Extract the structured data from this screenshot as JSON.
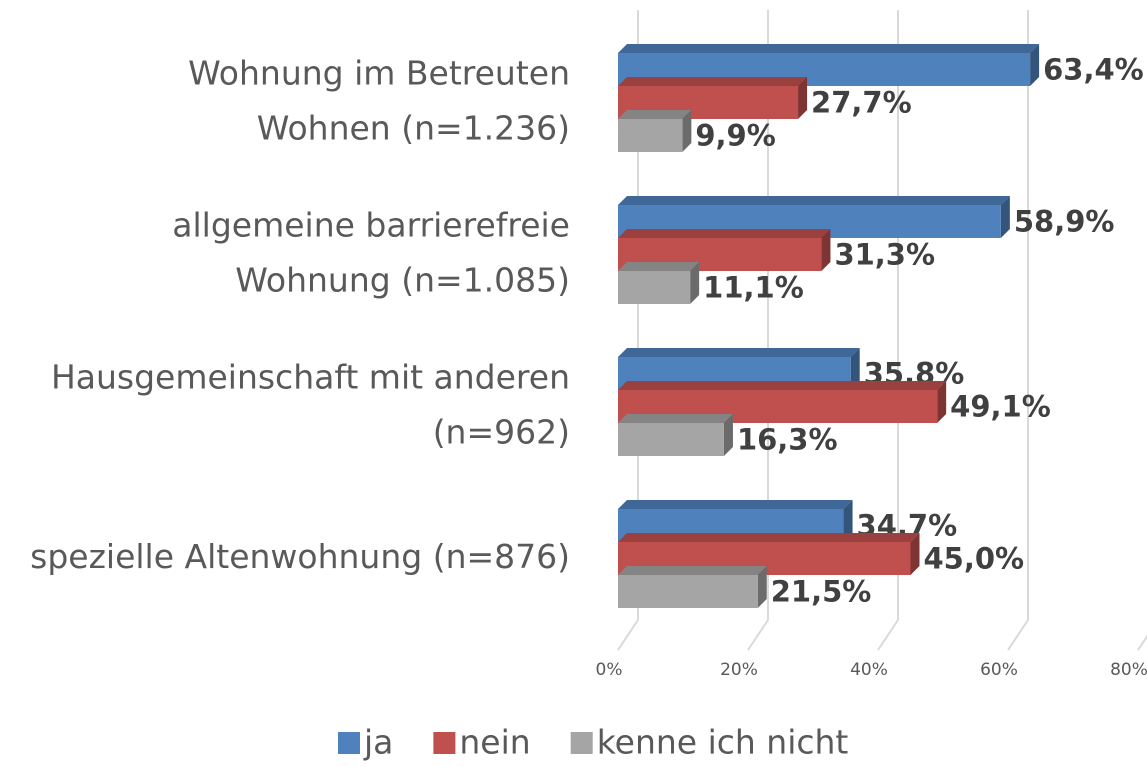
{
  "chart_data": {
    "type": "bar3d_horizontal",
    "categories": [
      [
        "Wohnung im Betreuten",
        "Wohnen (n=1.236)"
      ],
      [
        "allgemeine barrierefreie",
        "Wohnung  (n=1.085)"
      ],
      [
        "Hausgemeinschaft mit anderen",
        "(n=962)"
      ],
      [
        "spezielle Altenwohnung (n=876)"
      ]
    ],
    "series": [
      {
        "name": "ja",
        "color": "#4f81bd",
        "values": [
          63.4,
          58.9,
          35.8,
          34.7
        ],
        "value_labels": [
          "63,4%",
          "58,9%",
          "35,8%",
          "34,7%"
        ]
      },
      {
        "name": "nein",
        "color": "#c0504d",
        "values": [
          27.7,
          31.3,
          49.1,
          45.0
        ],
        "value_labels": [
          "27,7%",
          "31,3%",
          "49,1%",
          "45,0%"
        ]
      },
      {
        "name": "kenne ich nicht",
        "color": "#a5a5a5",
        "values": [
          9.9,
          11.1,
          16.3,
          21.5
        ],
        "value_labels": [
          "9,9%",
          "11,1%",
          "16,3%",
          "21,5%"
        ]
      }
    ],
    "xlim": [
      0,
      80
    ],
    "xticks": [
      {
        "value": 0,
        "label": "0%"
      },
      {
        "value": 20,
        "label": "20%"
      },
      {
        "value": 40,
        "label": "40%"
      },
      {
        "value": 60,
        "label": "60%"
      },
      {
        "value": 80,
        "label": "80%"
      }
    ],
    "grid": true,
    "legend": "bottom"
  }
}
